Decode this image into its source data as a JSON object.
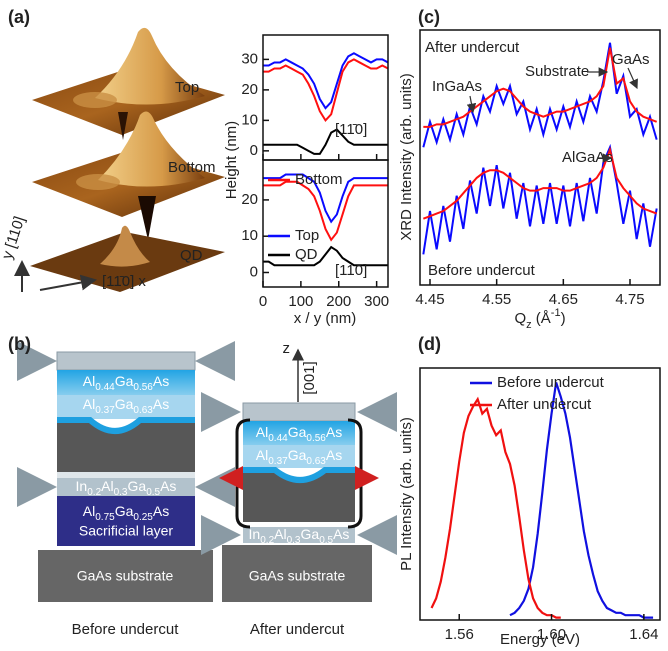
{
  "panel_labels": [
    "(a)",
    "(b)",
    "(c)",
    "(d)"
  ],
  "afm": {
    "images": [
      "Top",
      "Bottom",
      "QD"
    ],
    "y_axis": "y [110]",
    "x_axis": "[11̄0] x"
  },
  "diagram": {
    "before": {
      "layers": [
        [
          "Al",
          "0.44",
          "Ga",
          "0.56",
          "As"
        ],
        [
          "Al",
          "0.37",
          "Ga",
          "0.63",
          "As"
        ],
        [
          "In",
          "0.2",
          "Al",
          "0.3",
          "Ga",
          "0.5",
          "As"
        ],
        [
          "Al",
          "0.75",
          "Ga",
          "0.25",
          "As"
        ]
      ],
      "sacrificial": "Sacrificial layer",
      "substrate": "GaAs substrate",
      "caption": "Before undercut"
    },
    "after": {
      "axis": "z",
      "direction": "[001]",
      "layers": [
        [
          "Al",
          "0.44",
          "Ga",
          "0.56",
          "As"
        ],
        [
          "Al",
          "0.37",
          "Ga",
          "0.63",
          "As"
        ],
        [
          "In",
          "0.2",
          "Al",
          "0.3",
          "Ga",
          "0.5",
          "As"
        ]
      ],
      "substrate": "GaAs substrate",
      "caption": "After undercut"
    }
  },
  "chart_data": [
    {
      "type": "line",
      "annotation": "[11̄0]",
      "x": [
        0,
        15,
        30,
        45,
        60,
        75,
        90,
        105,
        120,
        135,
        150,
        165,
        180,
        195,
        210,
        225,
        240,
        255,
        270,
        285,
        300,
        315,
        330
      ],
      "series": [
        {
          "color": "#0a0aff",
          "values": [
            28,
            28,
            29,
            29,
            30,
            29,
            28,
            27,
            25,
            22,
            17,
            14,
            16,
            22,
            28,
            31,
            32,
            31,
            30,
            29,
            30,
            30,
            29
          ]
        },
        {
          "color": "#ff1010",
          "values": [
            26,
            26,
            27,
            27,
            28,
            27,
            26,
            25,
            22,
            18,
            13,
            10,
            12,
            19,
            26,
            29,
            30,
            29,
            28,
            27,
            27,
            28,
            27
          ]
        },
        {
          "color": "#000000",
          "values": [
            2,
            2,
            2,
            2,
            2,
            2,
            2,
            1,
            0,
            -1,
            -1,
            2,
            6,
            7,
            5,
            3,
            2,
            2,
            2,
            2,
            2,
            2,
            2
          ]
        }
      ],
      "xlim": [
        0,
        330
      ],
      "ylim": [
        -3,
        38
      ],
      "xticks": [
        0,
        100,
        200,
        300
      ],
      "yticks": [
        0,
        10,
        20,
        30
      ]
    },
    {
      "type": "line",
      "annotation": "[110]",
      "xlabel": "x / y (nm)",
      "ylabel": "Height (nm)",
      "legend": "upper left",
      "x": [
        0,
        15,
        30,
        45,
        60,
        75,
        90,
        105,
        120,
        135,
        150,
        165,
        180,
        195,
        210,
        225,
        240,
        255,
        270,
        285,
        300,
        315,
        330
      ],
      "series": [
        {
          "name": "Bottom",
          "color": "#ff1010",
          "values": [
            24,
            24,
            24,
            24,
            25,
            25,
            25,
            24,
            23,
            21,
            17,
            12,
            9,
            11,
            16,
            21,
            24,
            24,
            24,
            24,
            24,
            24,
            24
          ]
        },
        {
          "name": "Top",
          "color": "#0a0aff",
          "values": [
            26,
            26,
            26,
            26,
            27,
            27,
            27,
            27,
            26,
            25,
            22,
            17,
            14,
            16,
            21,
            25,
            26,
            26,
            26,
            26,
            26,
            26,
            26
          ]
        },
        {
          "name": "QD",
          "color": "#000000",
          "values": [
            3,
            3,
            2,
            2,
            2,
            2,
            2,
            2,
            2,
            2,
            3,
            5,
            7,
            6,
            4,
            3,
            2,
            2,
            2,
            2,
            2,
            2,
            2
          ]
        }
      ],
      "xlim": [
        0,
        330
      ],
      "ylim": [
        -4,
        31
      ],
      "xticks": [
        0,
        100,
        200,
        300
      ],
      "yticks": [
        0,
        10,
        20
      ]
    },
    {
      "type": "line",
      "xlabel": [
        "Q",
        "z",
        " (Å",
        "-1",
        ")"
      ],
      "ylabel": "XRD Intensity (arb. units)",
      "annotations": [
        "After undercut",
        "InGaAs",
        "Substrate",
        "GaAs",
        "AlGaAs",
        "Before undercut"
      ],
      "x": [
        4.44,
        4.45,
        4.46,
        4.47,
        4.48,
        4.49,
        4.5,
        4.51,
        4.52,
        4.53,
        4.54,
        4.55,
        4.56,
        4.57,
        4.58,
        4.59,
        4.6,
        4.61,
        4.62,
        4.63,
        4.64,
        4.65,
        4.66,
        4.67,
        4.68,
        4.69,
        4.7,
        4.71,
        4.72,
        4.73,
        4.74,
        4.75,
        4.76,
        4.77,
        4.78,
        4.79
      ],
      "series": [
        {
          "color": "#0a0aff",
          "values": [
            5.4,
            6.4,
            5.6,
            6.5,
            5.7,
            6.7,
            5.9,
            7.0,
            6.3,
            7.4,
            6.8,
            7.8,
            7.1,
            7.8,
            6.7,
            7.2,
            6.1,
            6.9,
            5.9,
            6.9,
            6.1,
            7.0,
            6.2,
            7.2,
            6.4,
            7.4,
            6.8,
            8.0,
            9.5,
            7.5,
            8.2,
            6.6,
            6.9,
            5.9,
            6.6,
            5.7
          ]
        },
        {
          "color": "#ff1010",
          "values": [
            6.2,
            6.2,
            6.3,
            6.3,
            6.4,
            6.5,
            6.6,
            6.8,
            7.0,
            7.2,
            7.4,
            7.6,
            7.7,
            7.6,
            7.3,
            7.0,
            6.8,
            6.7,
            6.6,
            6.7,
            6.8,
            6.8,
            6.9,
            7.0,
            7.1,
            7.2,
            7.4,
            7.8,
            9.3,
            7.9,
            8.1,
            7.2,
            6.8,
            6.6,
            6.5,
            6.4
          ]
        },
        {
          "color": "#0a0aff",
          "values": [
            1.2,
            2.9,
            1.4,
            3.1,
            1.7,
            3.5,
            2.2,
            4.1,
            2.8,
            4.6,
            3.1,
            4.7,
            3.0,
            4.4,
            2.6,
            4.0,
            2.3,
            3.9,
            2.4,
            4.0,
            2.4,
            3.9,
            2.3,
            4.0,
            2.5,
            4.2,
            2.8,
            4.8,
            5.4,
            4.0,
            2.4,
            3.7,
            1.8,
            3.2,
            1.5,
            3.0
          ]
        },
        {
          "color": "#ff1010",
          "values": [
            2.6,
            2.7,
            2.8,
            2.9,
            3.1,
            3.3,
            3.6,
            3.9,
            4.2,
            4.4,
            4.5,
            4.5,
            4.4,
            4.2,
            4.0,
            3.8,
            3.7,
            3.7,
            3.8,
            3.8,
            3.8,
            3.7,
            3.7,
            3.8,
            3.9,
            4.0,
            4.2,
            4.6,
            5.3,
            4.2,
            3.8,
            3.5,
            3.2,
            3.0,
            2.9,
            2.8
          ]
        }
      ],
      "xlim": [
        4.435,
        4.795
      ],
      "ylim": [
        0,
        10
      ],
      "xticks": [
        4.45,
        4.55,
        4.65,
        4.75
      ]
    },
    {
      "type": "line",
      "xlabel": "Energy (eV)",
      "ylabel": "PL Intensity (arb. units)",
      "legend": "upper right",
      "series": [
        {
          "name": "Before undercut",
          "color": "#1010e0",
          "x": [
            1.582,
            1.584,
            1.586,
            1.588,
            1.59,
            1.592,
            1.594,
            1.596,
            1.598,
            1.6,
            1.602,
            1.604,
            1.606,
            1.608,
            1.61,
            1.612,
            1.614,
            1.616,
            1.618,
            1.62,
            1.622,
            1.624,
            1.626,
            1.628,
            1.63,
            1.632,
            1.634,
            1.636,
            1.638,
            1.64,
            1.642,
            1.644
          ],
          "values": [
            0.2,
            0.3,
            0.5,
            0.8,
            1.3,
            2.2,
            3.6,
            5.3,
            7.1,
            8.6,
            9.9,
            9.3,
            8.6,
            7.6,
            6.3,
            5.0,
            3.7,
            2.7,
            1.9,
            1.2,
            0.8,
            0.5,
            0.4,
            0.3,
            0.3,
            0.2,
            0.2,
            0.2,
            0.2,
            0.1,
            0.1,
            0.1
          ]
        },
        {
          "name": "After undercut",
          "color": "#f01010",
          "x": [
            1.548,
            1.55,
            1.552,
            1.554,
            1.556,
            1.558,
            1.56,
            1.562,
            1.564,
            1.566,
            1.568,
            1.57,
            1.572,
            1.574,
            1.576,
            1.578,
            1.58,
            1.582,
            1.584,
            1.586,
            1.588,
            1.59,
            1.592,
            1.594,
            1.596,
            1.598,
            1.6,
            1.602,
            1.604
          ],
          "values": [
            0.5,
            0.9,
            1.6,
            2.6,
            3.8,
            5.2,
            6.6,
            7.8,
            8.5,
            8.9,
            9.2,
            8.6,
            8.8,
            8.1,
            7.7,
            7.9,
            7.0,
            6.5,
            5.6,
            4.3,
            2.9,
            1.7,
            0.9,
            0.5,
            0.3,
            0.2,
            0.2,
            0.1,
            0.1
          ]
        }
      ],
      "xlim": [
        1.543,
        1.647
      ],
      "ylim": [
        0,
        10.5
      ],
      "xticks": [
        1.56,
        {
          "value": 1.6,
          "label": "1.60"
        },
        1.64
      ]
    }
  ]
}
